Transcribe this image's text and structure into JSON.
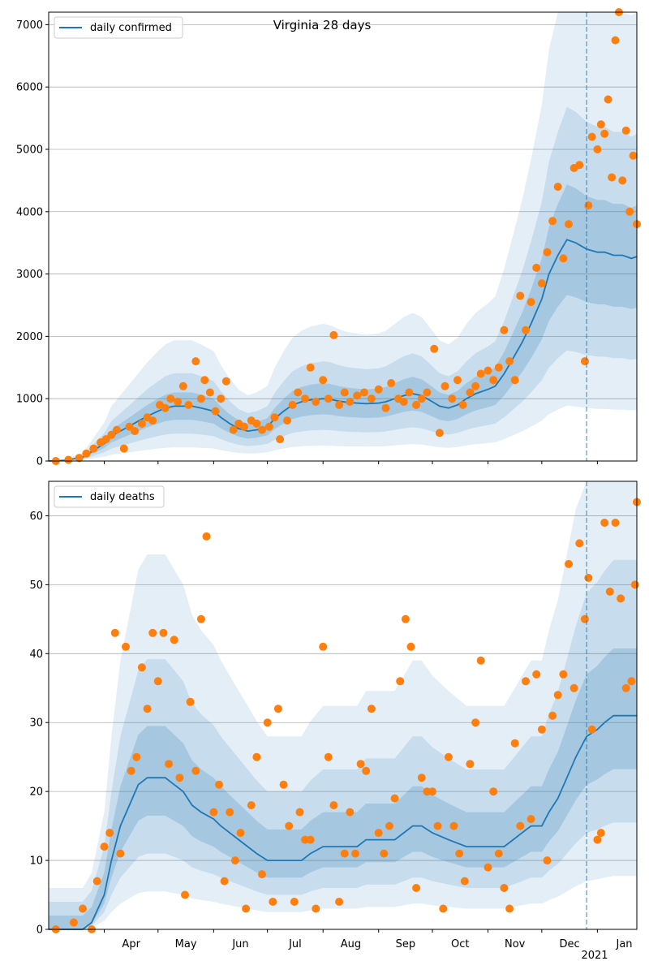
{
  "chart_data": [
    {
      "type": "scatter",
      "title": "Virginia 28 days",
      "xlabel": "",
      "ylabel": "",
      "ylim": [
        0,
        7200
      ],
      "yticks": [
        0,
        1000,
        2000,
        3000,
        4000,
        5000,
        6000,
        7000
      ],
      "xlim": [
        "2020-03-01",
        "2021-01-23"
      ],
      "grid": "horizontal",
      "legend_position": "top-left",
      "forecast_start": "2020-12-26",
      "colors": {
        "line": "#1f77b4",
        "points": "#ff7f0e",
        "band": "#1f77b4",
        "vline": "#1f77b4"
      },
      "series": [
        {
          "name": "daily confirmed",
          "kind": "line",
          "x": [
            "2020-03-01",
            "2020-03-10",
            "2020-03-20",
            "2020-03-25",
            "2020-04-01",
            "2020-04-05",
            "2020-04-10",
            "2020-04-15",
            "2020-04-20",
            "2020-04-25",
            "2020-05-01",
            "2020-05-05",
            "2020-05-10",
            "2020-05-15",
            "2020-05-20",
            "2020-05-25",
            "2020-06-01",
            "2020-06-05",
            "2020-06-10",
            "2020-06-15",
            "2020-06-20",
            "2020-06-25",
            "2020-07-01",
            "2020-07-05",
            "2020-07-10",
            "2020-07-15",
            "2020-07-20",
            "2020-07-25",
            "2020-08-01",
            "2020-08-05",
            "2020-08-10",
            "2020-08-15",
            "2020-08-20",
            "2020-08-25",
            "2020-09-01",
            "2020-09-05",
            "2020-09-10",
            "2020-09-15",
            "2020-09-20",
            "2020-09-25",
            "2020-10-01",
            "2020-10-05",
            "2020-10-10",
            "2020-10-15",
            "2020-10-20",
            "2020-10-25",
            "2020-11-01",
            "2020-11-05",
            "2020-11-10",
            "2020-11-15",
            "2020-11-20",
            "2020-11-25",
            "2020-12-01",
            "2020-12-05",
            "2020-12-10",
            "2020-12-15",
            "2020-12-20",
            "2020-12-26",
            "2021-01-01",
            "2021-01-05",
            "2021-01-10",
            "2021-01-15",
            "2021-01-20",
            "2021-01-23"
          ],
          "y": [
            0,
            10,
            60,
            150,
            280,
            400,
            480,
            560,
            640,
            720,
            800,
            850,
            880,
            880,
            880,
            850,
            800,
            700,
            600,
            520,
            480,
            500,
            550,
            680,
            800,
            900,
            950,
            980,
            1000,
            990,
            960,
            940,
            930,
            920,
            930,
            950,
            1000,
            1050,
            1080,
            1050,
            950,
            880,
            850,
            900,
            1000,
            1080,
            1150,
            1200,
            1400,
            1650,
            1900,
            2200,
            2600,
            3000,
            3300,
            3550,
            3500,
            3400,
            3350,
            3350,
            3300,
            3300,
            3250,
            3280
          ]
        },
        {
          "name": "",
          "kind": "points",
          "x": [
            "2020-03-05",
            "2020-03-12",
            "2020-03-18",
            "2020-03-22",
            "2020-03-26",
            "2020-03-30",
            "2020-04-02",
            "2020-04-05",
            "2020-04-08",
            "2020-04-12",
            "2020-04-15",
            "2020-04-18",
            "2020-04-22",
            "2020-04-25",
            "2020-04-28",
            "2020-05-02",
            "2020-05-05",
            "2020-05-08",
            "2020-05-12",
            "2020-05-15",
            "2020-05-18",
            "2020-05-22",
            "2020-05-25",
            "2020-05-27",
            "2020-05-30",
            "2020-06-02",
            "2020-06-05",
            "2020-06-08",
            "2020-06-12",
            "2020-06-15",
            "2020-06-18",
            "2020-06-22",
            "2020-06-25",
            "2020-06-28",
            "2020-07-02",
            "2020-07-05",
            "2020-07-08",
            "2020-07-12",
            "2020-07-15",
            "2020-07-18",
            "2020-07-22",
            "2020-07-25",
            "2020-07-28",
            "2020-08-01",
            "2020-08-04",
            "2020-08-07",
            "2020-08-10",
            "2020-08-13",
            "2020-08-16",
            "2020-08-20",
            "2020-08-24",
            "2020-08-28",
            "2020-09-01",
            "2020-09-05",
            "2020-09-08",
            "2020-09-12",
            "2020-09-15",
            "2020-09-18",
            "2020-09-22",
            "2020-09-25",
            "2020-09-28",
            "2020-10-02",
            "2020-10-05",
            "2020-10-08",
            "2020-10-12",
            "2020-10-15",
            "2020-10-18",
            "2020-10-22",
            "2020-10-25",
            "2020-10-28",
            "2020-11-01",
            "2020-11-04",
            "2020-11-07",
            "2020-11-10",
            "2020-11-13",
            "2020-11-16",
            "2020-11-19",
            "2020-11-22",
            "2020-11-25",
            "2020-11-28",
            "2020-12-01",
            "2020-12-04",
            "2020-12-07",
            "2020-12-10",
            "2020-12-13",
            "2020-12-16",
            "2020-12-19",
            "2020-12-22",
            "2020-12-25",
            "2020-12-27",
            "2020-12-29",
            "2021-01-01",
            "2021-01-03",
            "2021-01-05",
            "2021-01-07",
            "2021-01-09",
            "2021-01-11",
            "2021-01-13",
            "2021-01-15",
            "2021-01-17",
            "2021-01-19",
            "2021-01-21",
            "2021-01-23"
          ],
          "y": [
            0,
            20,
            50,
            120,
            200,
            300,
            350,
            420,
            500,
            200,
            550,
            480,
            600,
            700,
            650,
            900,
            850,
            1000,
            950,
            1200,
            900,
            1600,
            1000,
            1300,
            1100,
            800,
            1000,
            1280,
            500,
            600,
            550,
            650,
            600,
            500,
            550,
            700,
            350,
            650,
            900,
            1100,
            1000,
            1500,
            950,
            1300,
            1000,
            2020,
            900,
            1100,
            950,
            1050,
            1100,
            1000,
            1150,
            850,
            1250,
            1000,
            950,
            1100,
            900,
            1000,
            1100,
            1800,
            450,
            1200,
            1000,
            1300,
            900,
            1100,
            1200,
            1400,
            1450,
            1300,
            1500,
            2100,
            1600,
            1300,
            2650,
            2100,
            2550,
            3100,
            2850,
            3350,
            3850,
            4400,
            3250,
            3800,
            4700,
            4750,
            1600,
            4100,
            5200,
            5000,
            5400,
            5250,
            5800,
            4550,
            6750,
            7200,
            4500,
            5300,
            4000,
            4900,
            3800
          ]
        }
      ]
    },
    {
      "type": "scatter",
      "title": "",
      "xlabel": "",
      "ylabel": "",
      "ylim": [
        0,
        65
      ],
      "yticks": [
        0,
        10,
        20,
        30,
        40,
        50,
        60
      ],
      "xlim": [
        "2020-03-01",
        "2021-01-23"
      ],
      "xtick_labels": [
        "Apr",
        "May",
        "Jun",
        "Jul",
        "Aug",
        "Sep",
        "Oct",
        "Nov",
        "Dec",
        "Jan"
      ],
      "xtick_dates": [
        "2020-04-01",
        "2020-05-01",
        "2020-06-01",
        "2020-07-01",
        "2020-08-01",
        "2020-09-01",
        "2020-10-01",
        "2020-11-01",
        "2020-12-01",
        "2021-01-01"
      ],
      "year_label": "2021",
      "grid": "horizontal",
      "legend_position": "top-left",
      "forecast_start": "2020-12-26",
      "colors": {
        "line": "#1f77b4",
        "points": "#ff7f0e",
        "band": "#1f77b4",
        "vline": "#1f77b4"
      },
      "series": [
        {
          "name": "daily deaths",
          "kind": "line",
          "x": [
            "2020-03-01",
            "2020-03-20",
            "2020-03-25",
            "2020-04-01",
            "2020-04-05",
            "2020-04-10",
            "2020-04-15",
            "2020-04-20",
            "2020-04-25",
            "2020-05-01",
            "2020-05-05",
            "2020-05-10",
            "2020-05-15",
            "2020-05-20",
            "2020-05-25",
            "2020-06-01",
            "2020-06-05",
            "2020-06-10",
            "2020-06-15",
            "2020-06-20",
            "2020-06-25",
            "2020-07-01",
            "2020-07-10",
            "2020-07-20",
            "2020-07-25",
            "2020-08-01",
            "2020-08-10",
            "2020-08-20",
            "2020-08-25",
            "2020-09-01",
            "2020-09-10",
            "2020-09-15",
            "2020-09-20",
            "2020-09-25",
            "2020-10-01",
            "2020-10-10",
            "2020-10-20",
            "2020-11-01",
            "2020-11-10",
            "2020-11-15",
            "2020-11-20",
            "2020-11-25",
            "2020-12-01",
            "2020-12-05",
            "2020-12-10",
            "2020-12-15",
            "2020-12-20",
            "2020-12-26",
            "2021-01-01",
            "2021-01-05",
            "2021-01-10",
            "2021-01-15",
            "2021-01-20",
            "2021-01-23"
          ],
          "y": [
            0,
            0,
            1,
            5,
            10,
            15,
            18,
            21,
            22,
            22,
            22,
            21,
            20,
            18,
            17,
            16,
            15,
            14,
            13,
            12,
            11,
            10,
            10,
            10,
            11,
            12,
            12,
            12,
            13,
            13,
            13,
            14,
            15,
            15,
            14,
            13,
            12,
            12,
            12,
            13,
            14,
            15,
            15,
            17,
            19,
            22,
            25,
            28,
            29,
            30,
            31,
            31,
            31,
            31
          ]
        },
        {
          "name": "",
          "kind": "points",
          "x": [
            "2020-03-05",
            "2020-03-15",
            "2020-03-20",
            "2020-03-25",
            "2020-03-28",
            "2020-04-01",
            "2020-04-04",
            "2020-04-07",
            "2020-04-10",
            "2020-04-13",
            "2020-04-16",
            "2020-04-19",
            "2020-04-22",
            "2020-04-25",
            "2020-04-28",
            "2020-05-01",
            "2020-05-04",
            "2020-05-07",
            "2020-05-10",
            "2020-05-13",
            "2020-05-16",
            "2020-05-19",
            "2020-05-22",
            "2020-05-25",
            "2020-05-28",
            "2020-06-01",
            "2020-06-04",
            "2020-06-07",
            "2020-06-10",
            "2020-06-13",
            "2020-06-16",
            "2020-06-19",
            "2020-06-22",
            "2020-06-25",
            "2020-06-28",
            "2020-07-01",
            "2020-07-04",
            "2020-07-07",
            "2020-07-10",
            "2020-07-13",
            "2020-07-16",
            "2020-07-19",
            "2020-07-22",
            "2020-07-25",
            "2020-07-28",
            "2020-08-01",
            "2020-08-04",
            "2020-08-07",
            "2020-08-10",
            "2020-08-13",
            "2020-08-16",
            "2020-08-19",
            "2020-08-22",
            "2020-08-25",
            "2020-08-28",
            "2020-09-01",
            "2020-09-04",
            "2020-09-07",
            "2020-09-10",
            "2020-09-13",
            "2020-09-16",
            "2020-09-19",
            "2020-09-22",
            "2020-09-25",
            "2020-09-28",
            "2020-10-01",
            "2020-10-04",
            "2020-10-07",
            "2020-10-10",
            "2020-10-13",
            "2020-10-16",
            "2020-10-19",
            "2020-10-22",
            "2020-10-25",
            "2020-10-28",
            "2020-11-01",
            "2020-11-04",
            "2020-11-07",
            "2020-11-10",
            "2020-11-13",
            "2020-11-16",
            "2020-11-19",
            "2020-11-22",
            "2020-11-25",
            "2020-11-28",
            "2020-12-01",
            "2020-12-04",
            "2020-12-07",
            "2020-12-10",
            "2020-12-13",
            "2020-12-16",
            "2020-12-19",
            "2020-12-22",
            "2020-12-25",
            "2020-12-27",
            "2020-12-29",
            "2021-01-01",
            "2021-01-03",
            "2021-01-05",
            "2021-01-08",
            "2021-01-11",
            "2021-01-14",
            "2021-01-17",
            "2021-01-20",
            "2021-01-22",
            "2021-01-23"
          ],
          "y": [
            0,
            1,
            3,
            0,
            7,
            12,
            14,
            43,
            11,
            41,
            23,
            25,
            38,
            32,
            43,
            36,
            43,
            24,
            42,
            22,
            5,
            33,
            23,
            45,
            57,
            17,
            21,
            7,
            17,
            10,
            14,
            3,
            18,
            25,
            8,
            30,
            4,
            32,
            21,
            15,
            4,
            17,
            13,
            13,
            3,
            41,
            25,
            18,
            4,
            11,
            17,
            11,
            24,
            23,
            32,
            14,
            11,
            15,
            19,
            36,
            45,
            41,
            6,
            22,
            20,
            20,
            15,
            3,
            25,
            15,
            11,
            7,
            24,
            30,
            39,
            9,
            20,
            11,
            6,
            3,
            27,
            15,
            36,
            16,
            37,
            29,
            10,
            31,
            34,
            37,
            53,
            35,
            56,
            45,
            51,
            29,
            13,
            14,
            59,
            49,
            59,
            48,
            35,
            36,
            50,
            62
          ]
        }
      ]
    }
  ]
}
